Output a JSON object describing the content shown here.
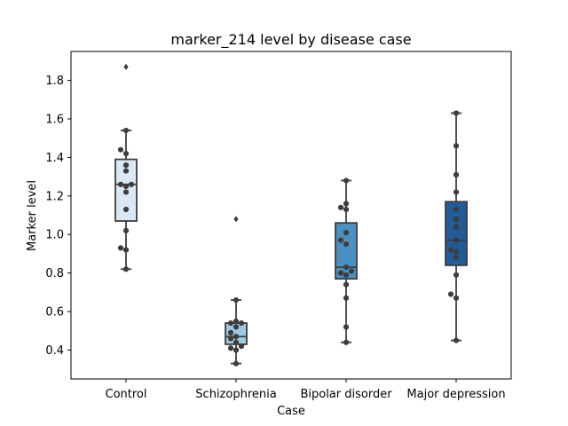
{
  "chart_data": {
    "type": "box",
    "title": "marker_214 level by disease case",
    "xlabel": "Case",
    "ylabel": "Marker level",
    "ylim": [
      0.25,
      1.95
    ],
    "yticks": [
      0.4,
      0.6,
      0.8,
      1.0,
      1.2,
      1.4,
      1.6,
      1.8
    ],
    "ytick_labels": [
      "0.4",
      "0.6",
      "0.8",
      "1.0",
      "1.2",
      "1.4",
      "1.6",
      "1.8"
    ],
    "grid": false,
    "categories": [
      "Control",
      "Schizophrenia",
      "Bipolar disorder",
      "Major depression"
    ],
    "colors": [
      "#dbe9f6",
      "#9ecae1",
      "#4a90c2",
      "#1f5c99"
    ],
    "boxes": [
      {
        "q1": 1.07,
        "median": 1.26,
        "q3": 1.39,
        "whisker_low": 0.82,
        "whisker_high": 1.54,
        "outliers": [
          1.87
        ],
        "points": [
          0.82,
          0.92,
          0.93,
          1.02,
          1.13,
          1.22,
          1.25,
          1.26,
          1.26,
          1.33,
          1.36,
          1.42,
          1.44,
          1.54
        ]
      },
      {
        "q1": 0.43,
        "median": 0.47,
        "q3": 0.54,
        "whisker_low": 0.33,
        "whisker_high": 0.66,
        "outliers": [
          1.08
        ],
        "points": [
          0.33,
          0.4,
          0.41,
          0.42,
          0.44,
          0.46,
          0.47,
          0.49,
          0.52,
          0.54,
          0.54,
          0.55,
          0.66
        ]
      },
      {
        "q1": 0.77,
        "median": 0.83,
        "q3": 1.06,
        "whisker_low": 0.44,
        "whisker_high": 1.28,
        "outliers": [],
        "points": [
          0.44,
          0.52,
          0.67,
          0.74,
          0.79,
          0.8,
          0.81,
          0.83,
          0.95,
          0.97,
          1.01,
          1.13,
          1.14,
          1.16,
          1.28
        ]
      },
      {
        "q1": 0.84,
        "median": 0.97,
        "q3": 1.17,
        "whisker_low": 0.45,
        "whisker_high": 1.63,
        "outliers": [],
        "points": [
          0.45,
          0.67,
          0.69,
          0.79,
          0.88,
          0.91,
          0.92,
          0.97,
          1.04,
          1.08,
          1.13,
          1.22,
          1.31,
          1.46,
          1.63
        ]
      }
    ]
  }
}
